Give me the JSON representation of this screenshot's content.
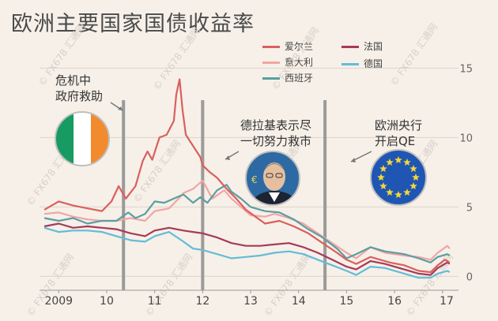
{
  "chart_data": {
    "type": "line",
    "title": "欧洲主要国家国债收益率",
    "x_tick_labels": [
      "2009",
      "10",
      "11",
      "12",
      "13",
      "14",
      "15",
      "16",
      "17"
    ],
    "y_ticks": [
      0,
      5,
      10,
      15
    ],
    "xlim": [
      2008.6,
      2017.25
    ],
    "ylim": [
      -1,
      16.5
    ],
    "events": [
      {
        "x": 2010.35,
        "label": "危机中\n政府救助"
      },
      {
        "x": 2012.0,
        "label": "德拉基表示尽\n一切努力救市"
      },
      {
        "x": 2014.55,
        "label": "欧洲央行\n开启QE"
      }
    ],
    "series": [
      {
        "name": "爱尔兰",
        "color": "#d9605e",
        "points": [
          [
            2008.7,
            4.8
          ],
          [
            2009.0,
            5.4
          ],
          [
            2009.3,
            5.1
          ],
          [
            2009.6,
            4.9
          ],
          [
            2009.9,
            4.7
          ],
          [
            2010.1,
            5.4
          ],
          [
            2010.25,
            6.5
          ],
          [
            2010.4,
            5.6
          ],
          [
            2010.6,
            6.5
          ],
          [
            2010.75,
            8.3
          ],
          [
            2010.85,
            9.0
          ],
          [
            2010.95,
            8.4
          ],
          [
            2011.1,
            10.0
          ],
          [
            2011.25,
            10.2
          ],
          [
            2011.4,
            11.2
          ],
          [
            2011.45,
            13.1
          ],
          [
            2011.52,
            14.2
          ],
          [
            2011.58,
            12.0
          ],
          [
            2011.65,
            10.2
          ],
          [
            2011.8,
            9.4
          ],
          [
            2011.95,
            8.6
          ],
          [
            2012.0,
            8.0
          ],
          [
            2012.15,
            7.5
          ],
          [
            2012.3,
            7.1
          ],
          [
            2012.5,
            6.3
          ],
          [
            2012.7,
            5.6
          ],
          [
            2012.9,
            4.8
          ],
          [
            2013.1,
            4.3
          ],
          [
            2013.3,
            3.8
          ],
          [
            2013.6,
            4.0
          ],
          [
            2013.9,
            3.6
          ],
          [
            2014.2,
            3.1
          ],
          [
            2014.5,
            2.4
          ],
          [
            2014.8,
            1.7
          ],
          [
            2015.0,
            1.2
          ],
          [
            2015.2,
            0.9
          ],
          [
            2015.5,
            1.4
          ],
          [
            2015.9,
            1.0
          ],
          [
            2016.2,
            0.8
          ],
          [
            2016.5,
            0.4
          ],
          [
            2016.75,
            0.3
          ],
          [
            2016.9,
            0.8
          ],
          [
            2017.05,
            1.2
          ],
          [
            2017.15,
            1.0
          ]
        ]
      },
      {
        "name": "意大利",
        "color": "#f2a5a5",
        "points": [
          [
            2008.7,
            4.5
          ],
          [
            2009.0,
            4.6
          ],
          [
            2009.3,
            4.3
          ],
          [
            2009.6,
            4.1
          ],
          [
            2009.9,
            4.0
          ],
          [
            2010.2,
            4.0
          ],
          [
            2010.5,
            4.2
          ],
          [
            2010.8,
            4.0
          ],
          [
            2011.0,
            4.7
          ],
          [
            2011.3,
            4.9
          ],
          [
            2011.5,
            5.6
          ],
          [
            2011.6,
            6.0
          ],
          [
            2011.8,
            6.3
          ],
          [
            2011.9,
            6.6
          ],
          [
            2012.0,
            6.9
          ],
          [
            2012.2,
            5.6
          ],
          [
            2012.45,
            6.2
          ],
          [
            2012.6,
            5.6
          ],
          [
            2012.8,
            5.0
          ],
          [
            2013.0,
            4.4
          ],
          [
            2013.3,
            4.3
          ],
          [
            2013.5,
            4.5
          ],
          [
            2013.8,
            4.2
          ],
          [
            2014.1,
            3.8
          ],
          [
            2014.4,
            3.1
          ],
          [
            2014.7,
            2.4
          ],
          [
            2015.0,
            1.7
          ],
          [
            2015.2,
            1.3
          ],
          [
            2015.5,
            2.1
          ],
          [
            2015.8,
            1.7
          ],
          [
            2016.2,
            1.5
          ],
          [
            2016.5,
            1.4
          ],
          [
            2016.75,
            1.2
          ],
          [
            2016.9,
            1.7
          ],
          [
            2017.1,
            2.2
          ],
          [
            2017.15,
            2.0
          ]
        ]
      },
      {
        "name": "西班牙",
        "color": "#5b9ea3",
        "points": [
          [
            2008.7,
            4.2
          ],
          [
            2009.0,
            4.0
          ],
          [
            2009.3,
            4.2
          ],
          [
            2009.6,
            3.8
          ],
          [
            2009.9,
            4.0
          ],
          [
            2010.2,
            4.0
          ],
          [
            2010.45,
            4.6
          ],
          [
            2010.6,
            4.2
          ],
          [
            2010.8,
            4.5
          ],
          [
            2011.0,
            5.4
          ],
          [
            2011.2,
            5.3
          ],
          [
            2011.4,
            5.6
          ],
          [
            2011.6,
            5.9
          ],
          [
            2011.8,
            5.3
          ],
          [
            2011.95,
            5.7
          ],
          [
            2012.1,
            5.3
          ],
          [
            2012.3,
            6.2
          ],
          [
            2012.5,
            6.6
          ],
          [
            2012.6,
            6.1
          ],
          [
            2012.8,
            5.6
          ],
          [
            2013.0,
            5.0
          ],
          [
            2013.3,
            4.7
          ],
          [
            2013.6,
            4.6
          ],
          [
            2013.9,
            4.1
          ],
          [
            2014.2,
            3.4
          ],
          [
            2014.5,
            2.8
          ],
          [
            2014.8,
            2.0
          ],
          [
            2015.0,
            1.3
          ],
          [
            2015.2,
            1.6
          ],
          [
            2015.5,
            2.1
          ],
          [
            2015.8,
            1.8
          ],
          [
            2016.2,
            1.6
          ],
          [
            2016.5,
            1.3
          ],
          [
            2016.75,
            1.0
          ],
          [
            2016.9,
            1.4
          ],
          [
            2017.1,
            1.6
          ],
          [
            2017.15,
            1.5
          ]
        ]
      },
      {
        "name": "法国",
        "color": "#a63a5a",
        "points": [
          [
            2008.7,
            3.6
          ],
          [
            2009.0,
            3.8
          ],
          [
            2009.3,
            3.5
          ],
          [
            2009.6,
            3.6
          ],
          [
            2009.9,
            3.5
          ],
          [
            2010.2,
            3.4
          ],
          [
            2010.5,
            3.1
          ],
          [
            2010.8,
            2.9
          ],
          [
            2011.0,
            3.3
          ],
          [
            2011.3,
            3.5
          ],
          [
            2011.6,
            3.3
          ],
          [
            2011.8,
            3.2
          ],
          [
            2012.0,
            3.1
          ],
          [
            2012.3,
            2.8
          ],
          [
            2012.6,
            2.4
          ],
          [
            2012.9,
            2.2
          ],
          [
            2013.2,
            2.2
          ],
          [
            2013.5,
            2.3
          ],
          [
            2013.8,
            2.4
          ],
          [
            2014.1,
            2.1
          ],
          [
            2014.4,
            1.7
          ],
          [
            2014.7,
            1.2
          ],
          [
            2015.0,
            0.7
          ],
          [
            2015.2,
            0.5
          ],
          [
            2015.5,
            1.1
          ],
          [
            2015.8,
            0.9
          ],
          [
            2016.2,
            0.5
          ],
          [
            2016.5,
            0.2
          ],
          [
            2016.75,
            0.1
          ],
          [
            2016.9,
            0.6
          ],
          [
            2017.1,
            1.0
          ],
          [
            2017.15,
            0.9
          ]
        ]
      },
      {
        "name": "德国",
        "color": "#63bcd8",
        "points": [
          [
            2008.7,
            3.5
          ],
          [
            2009.0,
            3.2
          ],
          [
            2009.3,
            3.3
          ],
          [
            2009.6,
            3.3
          ],
          [
            2009.9,
            3.2
          ],
          [
            2010.2,
            2.9
          ],
          [
            2010.5,
            2.6
          ],
          [
            2010.8,
            2.5
          ],
          [
            2011.0,
            2.9
          ],
          [
            2011.3,
            3.2
          ],
          [
            2011.6,
            2.5
          ],
          [
            2011.8,
            2.0
          ],
          [
            2012.0,
            1.9
          ],
          [
            2012.3,
            1.6
          ],
          [
            2012.6,
            1.3
          ],
          [
            2012.9,
            1.4
          ],
          [
            2013.2,
            1.5
          ],
          [
            2013.5,
            1.7
          ],
          [
            2013.8,
            1.8
          ],
          [
            2014.1,
            1.6
          ],
          [
            2014.4,
            1.2
          ],
          [
            2014.7,
            0.8
          ],
          [
            2015.0,
            0.4
          ],
          [
            2015.2,
            0.1
          ],
          [
            2015.5,
            0.7
          ],
          [
            2015.8,
            0.6
          ],
          [
            2016.2,
            0.2
          ],
          [
            2016.5,
            -0.1
          ],
          [
            2016.75,
            -0.1
          ],
          [
            2016.9,
            0.2
          ],
          [
            2017.1,
            0.4
          ],
          [
            2017.15,
            0.3
          ]
        ]
      }
    ]
  },
  "watermark_text": "© FX678 汇通网"
}
